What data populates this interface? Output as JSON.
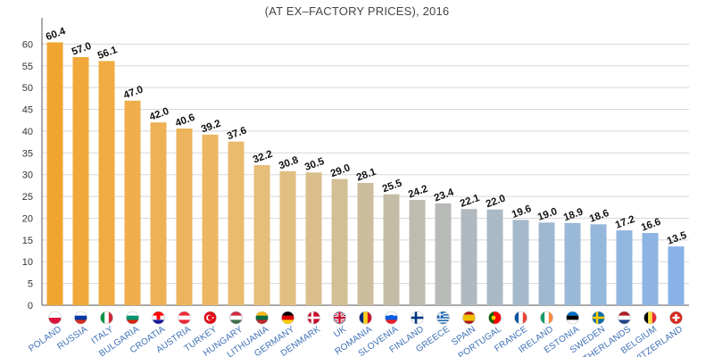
{
  "header": {
    "subtitle": "(AT EX–FACTORY PRICES), 2016"
  },
  "chart_data": {
    "type": "bar",
    "categories": [
      "POLAND",
      "RUSSIA",
      "ITALY",
      "BULGARIA",
      "CROATIA",
      "AUSTRIA",
      "TURKEY",
      "HUNGARY",
      "LITHUANIA",
      "GERMANY",
      "DENMARK",
      "UK",
      "ROMANIA",
      "SLOVENIA",
      "FINLAND",
      "GREECE",
      "SPAIN",
      "PORTUGAL",
      "FRANCE",
      "IRELAND",
      "ESTONIA",
      "SWEDEN",
      "NETHERLANDS",
      "BELGIUM",
      "SWITZERLAND"
    ],
    "values": [
      60.4,
      57.0,
      56.1,
      47.0,
      42.0,
      40.6,
      39.2,
      37.6,
      32.2,
      30.8,
      30.5,
      29.0,
      28.1,
      25.5,
      24.2,
      23.4,
      22.1,
      22.0,
      19.6,
      19.0,
      18.9,
      18.6,
      17.2,
      16.6,
      13.5
    ],
    "value_labels": [
      "60.4",
      "57.0",
      "56.1",
      "47.0",
      "42.0",
      "40.6",
      "39.2",
      "37.6",
      "32.2",
      "30.8",
      "30.5",
      "29.0",
      "28.1",
      "25.5",
      "24.2",
      "23.4",
      "22.1",
      "22.0",
      "19.6",
      "19.0",
      "18.9",
      "18.6",
      "17.2",
      "16.6",
      "13.5"
    ],
    "ylim": [
      0,
      65
    ],
    "yticks": [
      0,
      5,
      10,
      15,
      20,
      25,
      30,
      35,
      40,
      45,
      50,
      55,
      60
    ],
    "grid": true,
    "title": "",
    "xlabel": "",
    "ylabel": "",
    "bar_colors": [
      "#f0a531",
      "#f0a83a",
      "#f0ab42",
      "#efae4b",
      "#eeb154",
      "#edb45d",
      "#ecb765",
      "#eaba6e",
      "#e6bd79",
      "#e1be82",
      "#dabe8c",
      "#d3be95",
      "#ccbd9e",
      "#c5bca6",
      "#bebbaf",
      "#b7bab7",
      "#b0b9bf",
      "#aab9c6",
      "#a4b9cc",
      "#9fb8d2",
      "#9ab8d7",
      "#95b7db",
      "#91b6df",
      "#8db4e2",
      "#88b2e6"
    ],
    "flags": [
      "poland-flag-icon",
      "russia-flag-icon",
      "italy-flag-icon",
      "bulgaria-flag-icon",
      "croatia-flag-icon",
      "austria-flag-icon",
      "turkey-flag-icon",
      "hungary-flag-icon",
      "lithuania-flag-icon",
      "germany-flag-icon",
      "denmark-flag-icon",
      "uk-flag-icon",
      "romania-flag-icon",
      "slovenia-flag-icon",
      "finland-flag-icon",
      "greece-flag-icon",
      "spain-flag-icon",
      "portugal-flag-icon",
      "france-flag-icon",
      "ireland-flag-icon",
      "estonia-flag-icon",
      "sweden-flag-icon",
      "netherlands-flag-icon",
      "belgium-flag-icon",
      "switzerland-flag-icon"
    ]
  }
}
